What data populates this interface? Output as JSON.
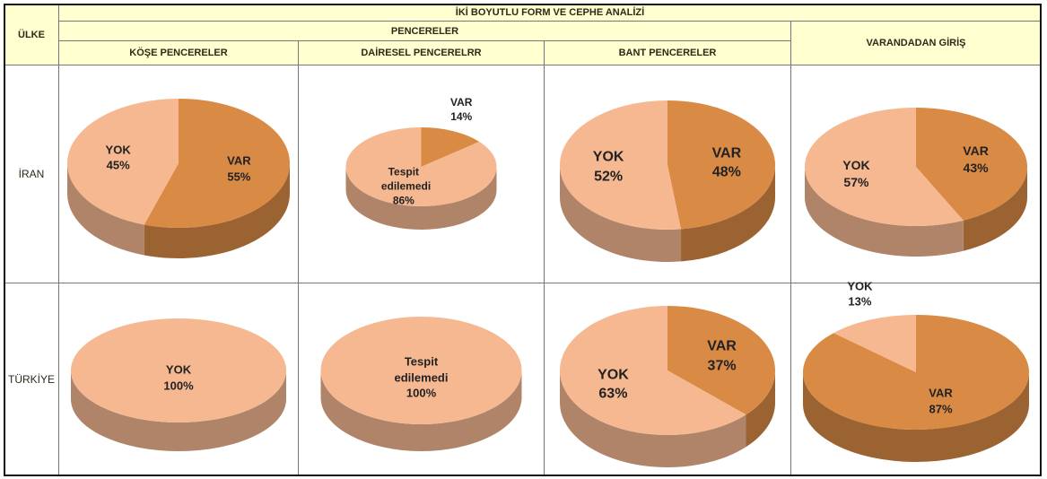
{
  "table": {
    "title": "İKİ BOYUTLU FORM VE CEPHE ANALİZİ",
    "country_header": "ÜLKE",
    "group_header": "PENCERELER",
    "columns": [
      "KÖŞE PENCERELER",
      "DAİRESEL PENCERELRR",
      "BANT PENCERELER",
      "VARANDADAN GİRİŞ"
    ],
    "rows": [
      "İRAN",
      "TÜRKİYE"
    ]
  },
  "chart_data": [
    {
      "type": "pie",
      "categories": [
        "VAR",
        "YOK"
      ],
      "values": [
        55,
        45
      ],
      "value_labels": [
        "55%",
        "45%"
      ],
      "colors": [
        "#d98a45",
        "#f5b890"
      ]
    },
    {
      "type": "pie",
      "categories": [
        "VAR",
        "Tespit edilemedi"
      ],
      "values": [
        14,
        86
      ],
      "value_labels": [
        "14%",
        "86%"
      ],
      "colors": [
        "#d98a45",
        "#f5b890"
      ]
    },
    {
      "type": "pie",
      "categories": [
        "VAR",
        "YOK"
      ],
      "values": [
        48,
        52
      ],
      "value_labels": [
        "48%",
        "52%"
      ],
      "colors": [
        "#d98a45",
        "#f5b890"
      ]
    },
    {
      "type": "pie",
      "categories": [
        "VAR",
        "YOK"
      ],
      "values": [
        43,
        57
      ],
      "value_labels": [
        "43%",
        "57%"
      ],
      "colors": [
        "#d98a45",
        "#f5b890"
      ]
    },
    {
      "type": "pie",
      "categories": [
        "YOK"
      ],
      "values": [
        100
      ],
      "value_labels": [
        "100%"
      ],
      "colors": [
        "#f5b890"
      ]
    },
    {
      "type": "pie",
      "categories": [
        "Tespit edilemedi"
      ],
      "values": [
        100
      ],
      "value_labels": [
        "100%"
      ],
      "colors": [
        "#f5b890"
      ]
    },
    {
      "type": "pie",
      "categories": [
        "VAR",
        "YOK"
      ],
      "values": [
        37,
        63
      ],
      "value_labels": [
        "37%",
        "63%"
      ],
      "colors": [
        "#d98a45",
        "#f5b890"
      ]
    },
    {
      "type": "pie",
      "categories": [
        "VAR",
        "YOK"
      ],
      "values": [
        87,
        13
      ],
      "value_labels": [
        "87%",
        "13%"
      ],
      "colors": [
        "#d98a45",
        "#f5b890"
      ]
    }
  ]
}
